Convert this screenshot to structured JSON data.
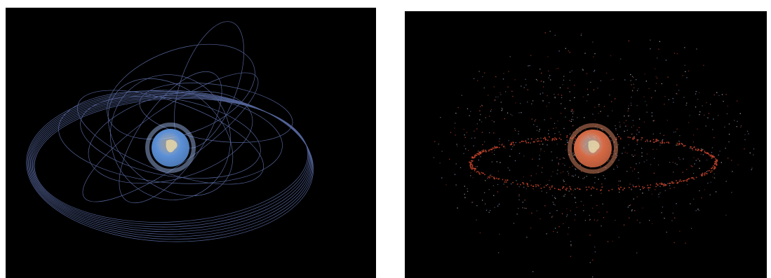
{
  "panels": [
    {
      "id": "orbits",
      "subject": "earth-with-satellite-orbit-trails",
      "globe_color": "#5b8fd6",
      "glow_color": "#aac8ff",
      "trail_color": "#6f84c9"
    },
    {
      "id": "debris",
      "subject": "earth-with-orbital-debris-cloud",
      "globe_color": "#d66a45",
      "glow_color": "#ff9a72",
      "debris_colors": [
        "#c9452d",
        "#7d8fb8",
        "#b8b8b8"
      ]
    }
  ]
}
